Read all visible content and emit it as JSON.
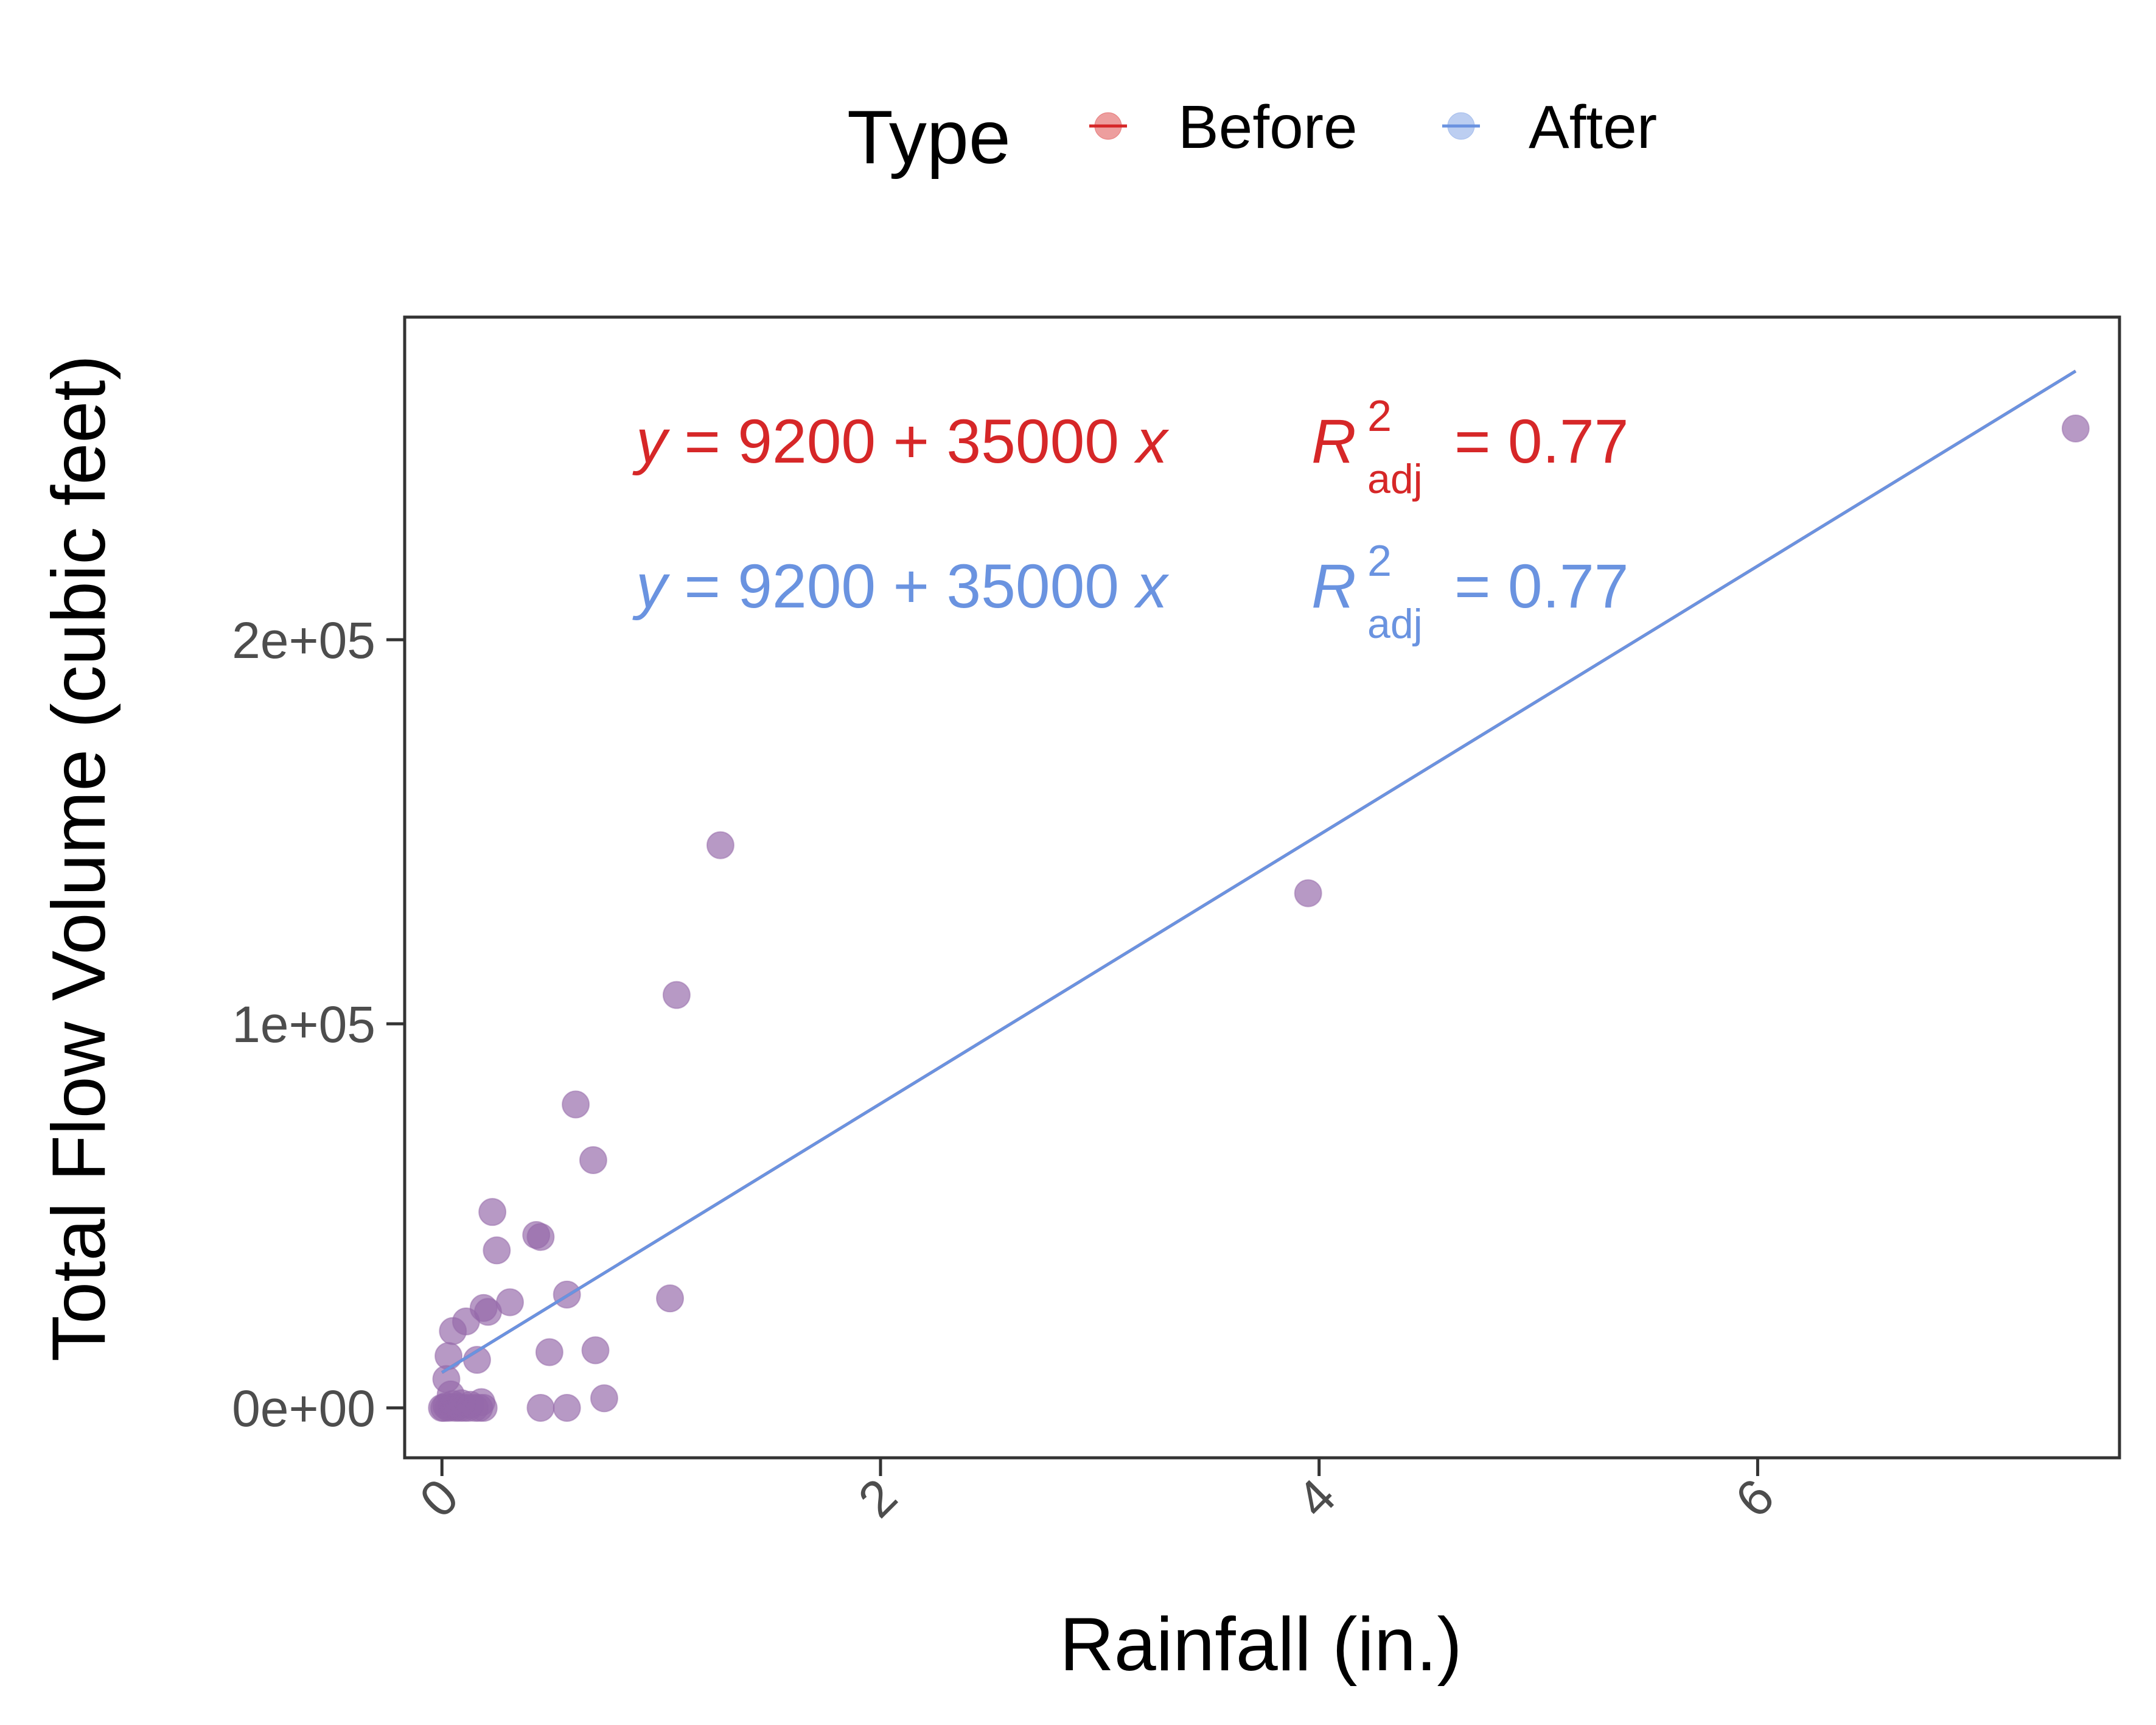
{
  "chart_data": {
    "type": "scatter",
    "xlabel": "Rainfall (in.)",
    "ylabel": "Total Flow Volume (cubic feet)",
    "xlim": [
      -0.17,
      7.65
    ],
    "ylim": [
      -13000,
      284000
    ],
    "x_ticks": [
      0,
      2,
      4,
      6
    ],
    "x_tick_labels": [
      "0",
      "2",
      "4",
      "6"
    ],
    "y_ticks": [
      0,
      100000,
      200000
    ],
    "y_tick_labels": [
      "0e+00",
      "1e+05",
      "2e+05"
    ],
    "grid": false,
    "legend": {
      "title": "Type",
      "placement": "top",
      "entries": [
        {
          "label": "Before",
          "color": "#d62728"
        },
        {
          "label": "After",
          "color": "#6a93e0"
        }
      ]
    },
    "point_color": "#9569aa",
    "series": [
      {
        "name": "Points",
        "points": [
          [
            0.0,
            0
          ],
          [
            0.01,
            0
          ],
          [
            0.02,
            500
          ],
          [
            0.03,
            0
          ],
          [
            0.04,
            200
          ],
          [
            0.05,
            1000
          ],
          [
            0.06,
            0
          ],
          [
            0.07,
            300
          ],
          [
            0.08,
            0
          ],
          [
            0.1,
            0
          ],
          [
            0.12,
            0
          ],
          [
            0.15,
            0
          ],
          [
            0.17,
            0
          ],
          [
            0.19,
            0
          ],
          [
            0.09,
            1200
          ],
          [
            0.13,
            800
          ],
          [
            0.04,
            3500
          ],
          [
            0.02,
            7500
          ],
          [
            0.03,
            13500
          ],
          [
            0.05,
            20000
          ],
          [
            0.11,
            22500
          ],
          [
            0.16,
            12500
          ],
          [
            0.18,
            1500
          ],
          [
            0.19,
            26000
          ],
          [
            0.21,
            25000
          ],
          [
            0.23,
            51000
          ],
          [
            0.25,
            41000
          ],
          [
            0.31,
            27500
          ],
          [
            0.43,
            45000
          ],
          [
            0.45,
            44500
          ],
          [
            0.49,
            14500
          ],
          [
            0.45,
            0
          ],
          [
            0.57,
            0
          ],
          [
            0.57,
            29500
          ],
          [
            0.61,
            79000
          ],
          [
            0.7,
            15000
          ],
          [
            0.69,
            64500
          ],
          [
            0.74,
            2500
          ],
          [
            1.04,
            28500
          ],
          [
            1.07,
            107500
          ],
          [
            1.27,
            146500
          ],
          [
            3.95,
            134000
          ],
          [
            7.45,
            255000
          ]
        ]
      }
    ],
    "fit_lines": [
      {
        "name": "Before",
        "color": "#d62728",
        "intercept": 9200,
        "slope": 35000,
        "x_range": [
          0,
          7.45
        ],
        "equation_text": "y = 9200 + 35000 x",
        "r2_adj": "0.77"
      },
      {
        "name": "After",
        "color": "#6a93e0",
        "intercept": 9200,
        "slope": 35000,
        "x_range": [
          0,
          7.45
        ],
        "equation_text": "y = 9200 + 35000 x",
        "r2_adj": "0.77"
      }
    ],
    "annotations": [
      {
        "series": "Before",
        "color": "#d62728",
        "eq_y": "y",
        "eq_eq": "=",
        "eq_body": "9200 + 35000",
        "eq_x": "x",
        "r_letter": "R",
        "r_sup": "2",
        "r_sub": "adj",
        "r_value": "= 0.77"
      },
      {
        "series": "After",
        "color": "#6a93e0",
        "eq_y": "y",
        "eq_eq": "=",
        "eq_body": "9200 + 35000",
        "eq_x": "x",
        "r_letter": "R",
        "r_sup": "2",
        "r_sub": "adj",
        "r_value": "= 0.77"
      }
    ]
  }
}
